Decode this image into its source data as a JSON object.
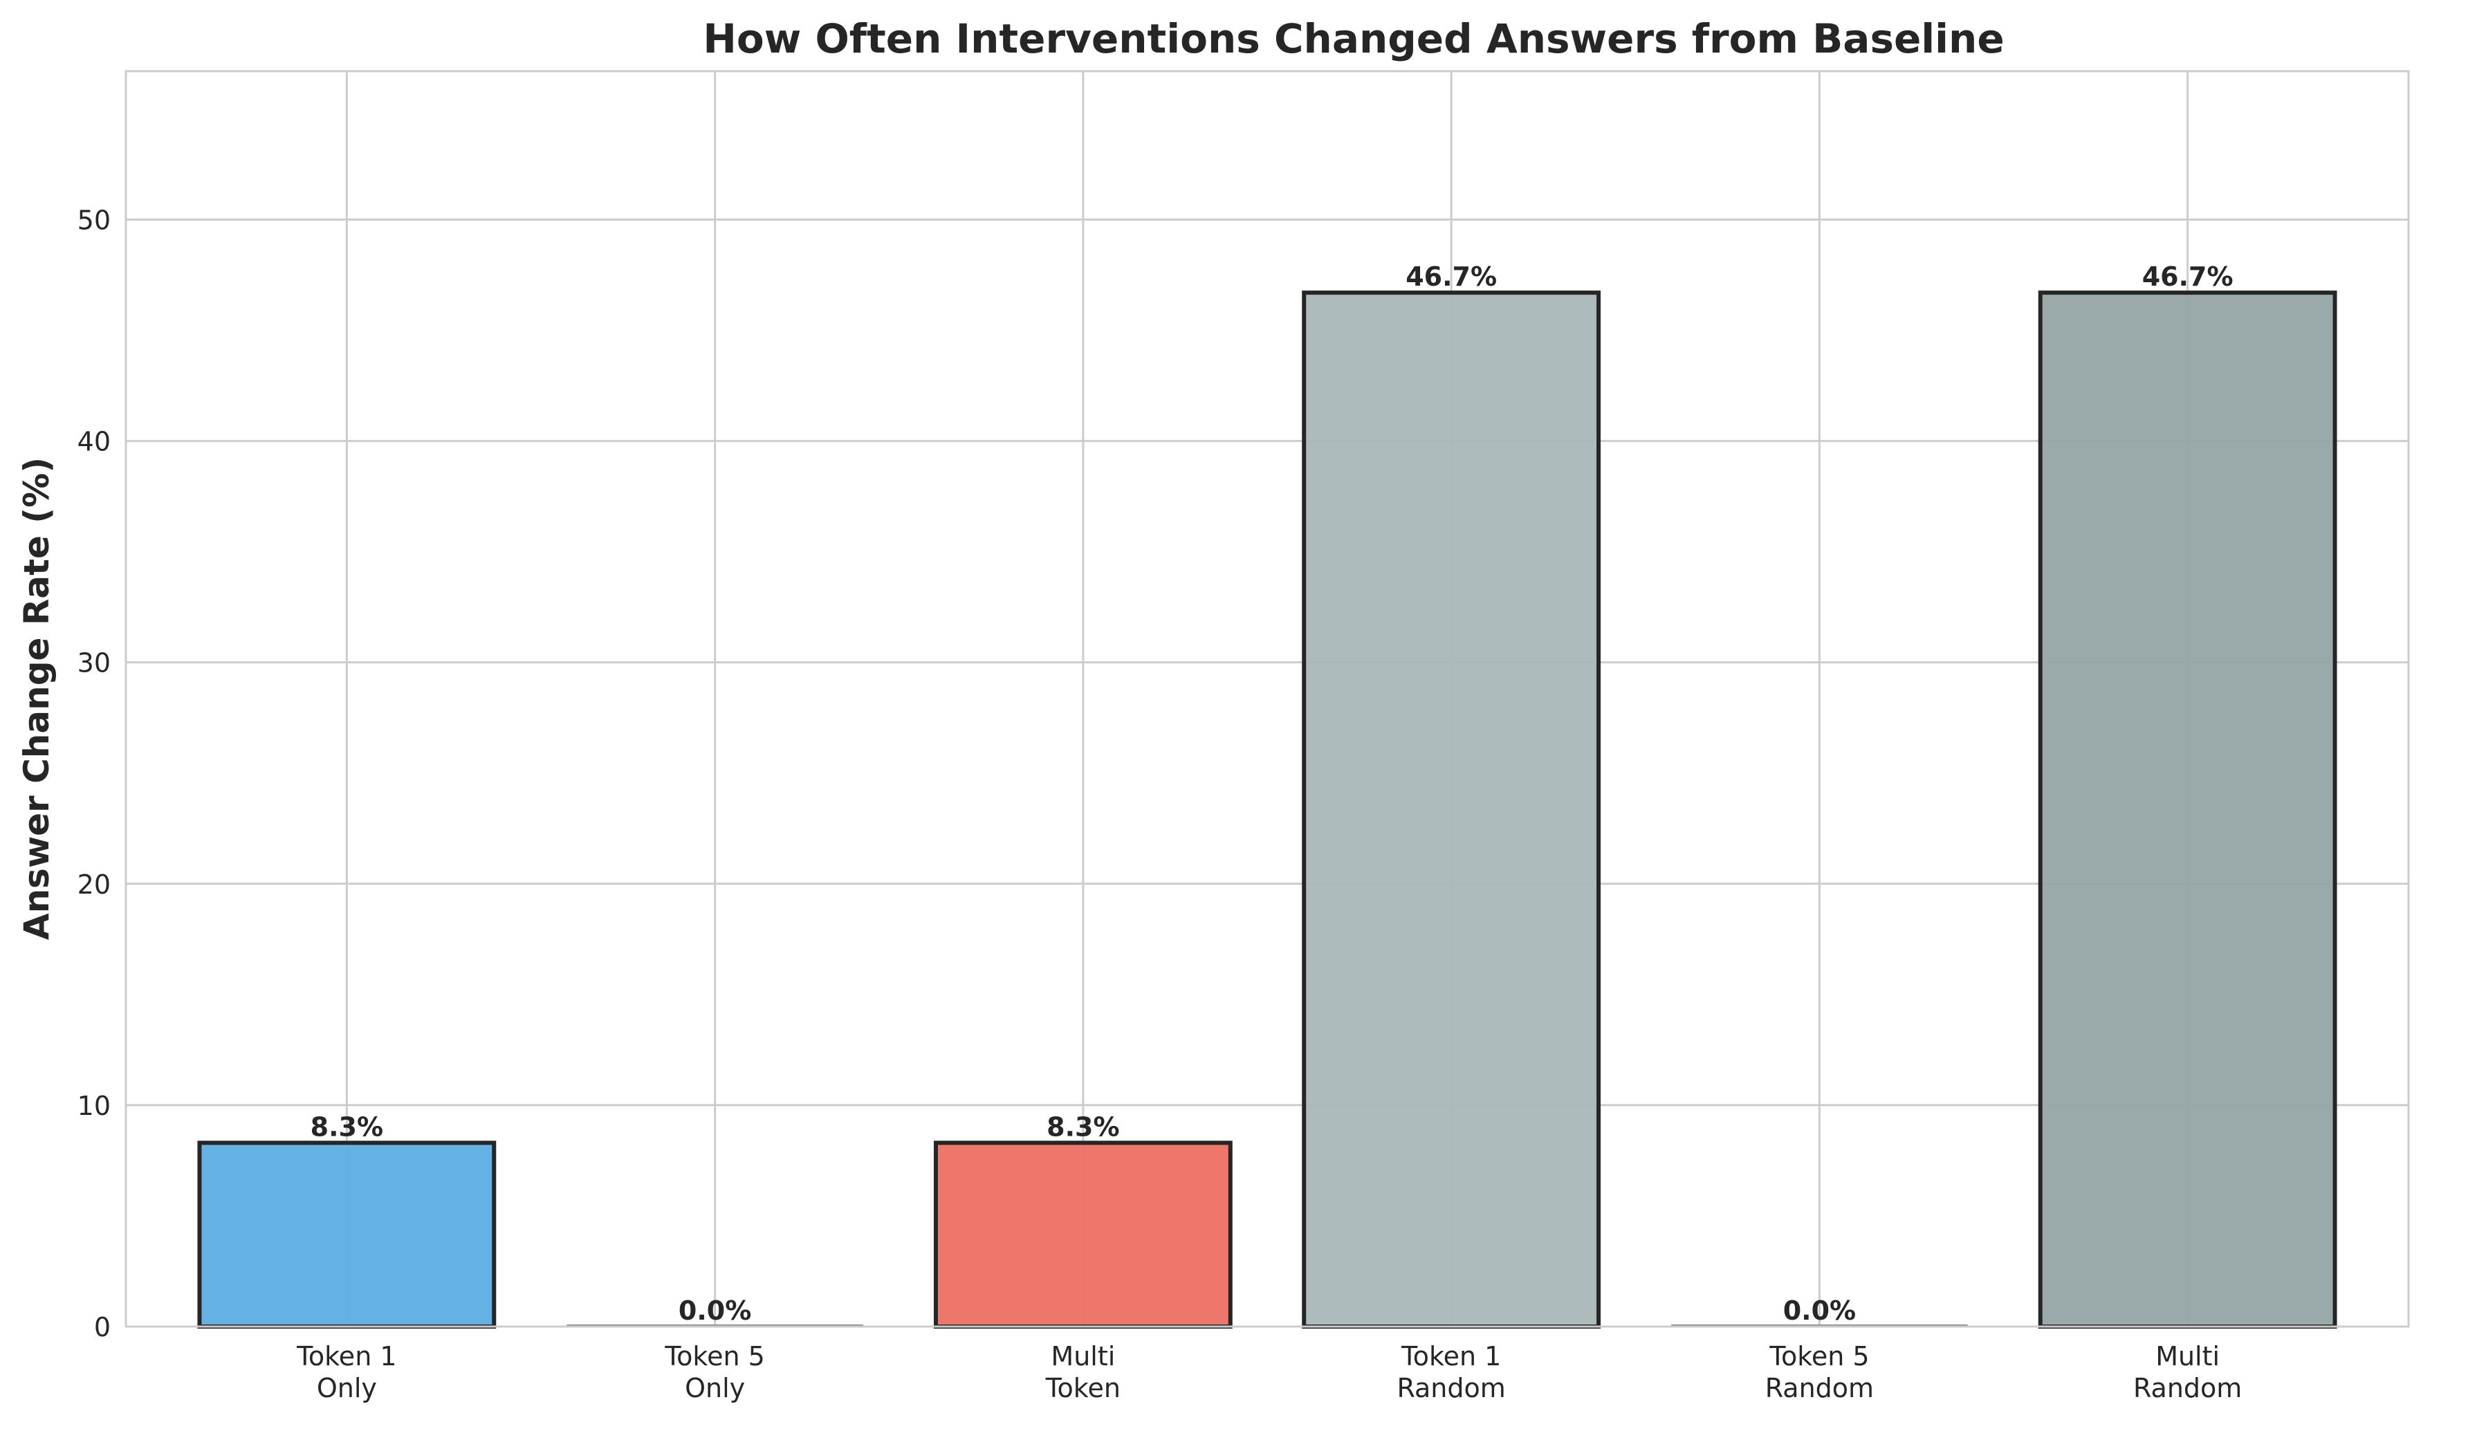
{
  "chart_data": {
    "type": "bar",
    "title": "How Often Interventions Changed Answers from Baseline",
    "xlabel": "",
    "ylabel": "Answer Change Rate (%)",
    "categories": [
      [
        "Token 1",
        "Only"
      ],
      [
        "Token 5",
        "Only"
      ],
      [
        "Multi",
        "Token"
      ],
      [
        "Token 1",
        "Random"
      ],
      [
        "Token 5",
        "Random"
      ],
      [
        "Multi",
        "Random"
      ]
    ],
    "values": [
      8.3,
      0.0,
      8.3,
      46.7,
      0.0,
      46.7
    ],
    "data_labels": [
      "8.3%",
      "0.0%",
      "8.3%",
      "46.7%",
      "0.0%",
      "46.7%"
    ],
    "colors": [
      "#5dade2",
      "#7f8c8d",
      "#ec7063",
      "#aab7b8",
      "#7f8c8d",
      "#95a5a6"
    ],
    "ylim": [
      0,
      56.7
    ],
    "yticks": [
      0,
      10,
      20,
      30,
      40,
      50
    ],
    "grid": true,
    "legend": "none"
  }
}
